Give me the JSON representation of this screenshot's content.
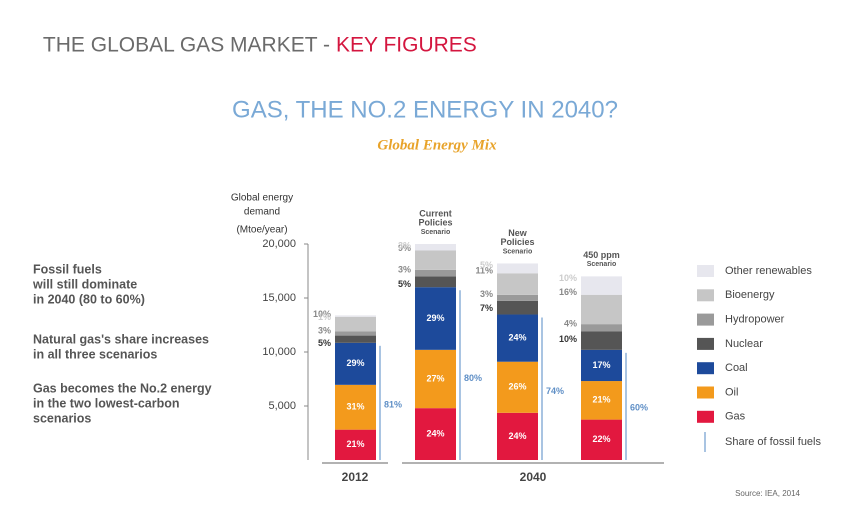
{
  "chart_data": {
    "type": "bar",
    "header": "THE GLOBAL GAS MARKET -",
    "header_highlight": "KEY FIGURES",
    "title": "GAS, THE NO.2 ENERGY IN 2040?",
    "subtitle": "Global Energy Mix",
    "y_label": [
      "Global energy",
      "demand",
      "(Mtoe/year)"
    ],
    "categories": [
      [
        "2012"
      ],
      [
        "Current",
        "Policies",
        "Scenario"
      ],
      [
        "New",
        "Policies",
        "Scenario"
      ],
      [
        "450 ppm",
        "Scenario"
      ]
    ],
    "groups": [
      "2012",
      "2040"
    ],
    "ylim": [
      0,
      20000
    ],
    "yticks": [
      {
        "value": 5000,
        "label": "5,000"
      },
      {
        "value": 10000,
        "label": "10,000"
      },
      {
        "value": 15000,
        "label": "15,000"
      },
      {
        "value": 20000,
        "label": "20,000"
      }
    ],
    "series": [
      {
        "name": "Gas",
        "color": "#e2183f",
        "values": [
          2810,
          4800,
          4370,
          3740
        ],
        "share_labels": [
          "21%",
          "24%",
          "24%",
          "22%"
        ]
      },
      {
        "name": "Oil",
        "color": "#f39a1c",
        "values": [
          4150,
          5400,
          4730,
          3570
        ],
        "share_labels": [
          "31%",
          "27%",
          "26%",
          "21%"
        ]
      },
      {
        "name": "Coal",
        "color": "#1d4a9b",
        "values": [
          3890,
          5800,
          4370,
          2890
        ],
        "share_labels": [
          "29%",
          "29%",
          "24%",
          "17%"
        ]
      },
      {
        "name": "Nuclear",
        "color": "#555555",
        "values": [
          670,
          1000,
          1270,
          1700
        ],
        "share_labels": [
          "5%",
          "5%",
          "7%",
          "10%"
        ]
      },
      {
        "name": "Hydropower",
        "color": "#9a9a9a",
        "values": [
          400,
          600,
          550,
          680
        ],
        "share_labels": [
          "3%",
          "3%",
          "3%",
          "4%"
        ]
      },
      {
        "name": "Bioenergy",
        "color": "#c6c6c6",
        "values": [
          1340,
          1800,
          2000,
          2720
        ],
        "share_labels": [
          "10%",
          "9%",
          "11%",
          "16%"
        ]
      },
      {
        "name": "Other renewables",
        "color": "#e7e7ee",
        "values": [
          130,
          600,
          910,
          1700
        ],
        "share_labels": [
          "1%",
          "3%",
          "5%",
          "10%"
        ]
      }
    ],
    "fossil_share": {
      "name": "Share of fossil fuels",
      "color": "#a9c4e2",
      "values": [
        81,
        80,
        74,
        60
      ],
      "value_labels": [
        "81%",
        "80%",
        "74%",
        "60%"
      ]
    },
    "notes": [
      [
        "Fossil fuels",
        "will still dominate",
        "in 2040 (80 to 60%)"
      ],
      [
        "Natural gas's share increases",
        "in all three scenarios"
      ],
      [
        "Gas becomes the No.2 energy",
        "in the two lowest-carbon",
        "scenarios"
      ]
    ],
    "source": "Source: IEA, 2014"
  }
}
